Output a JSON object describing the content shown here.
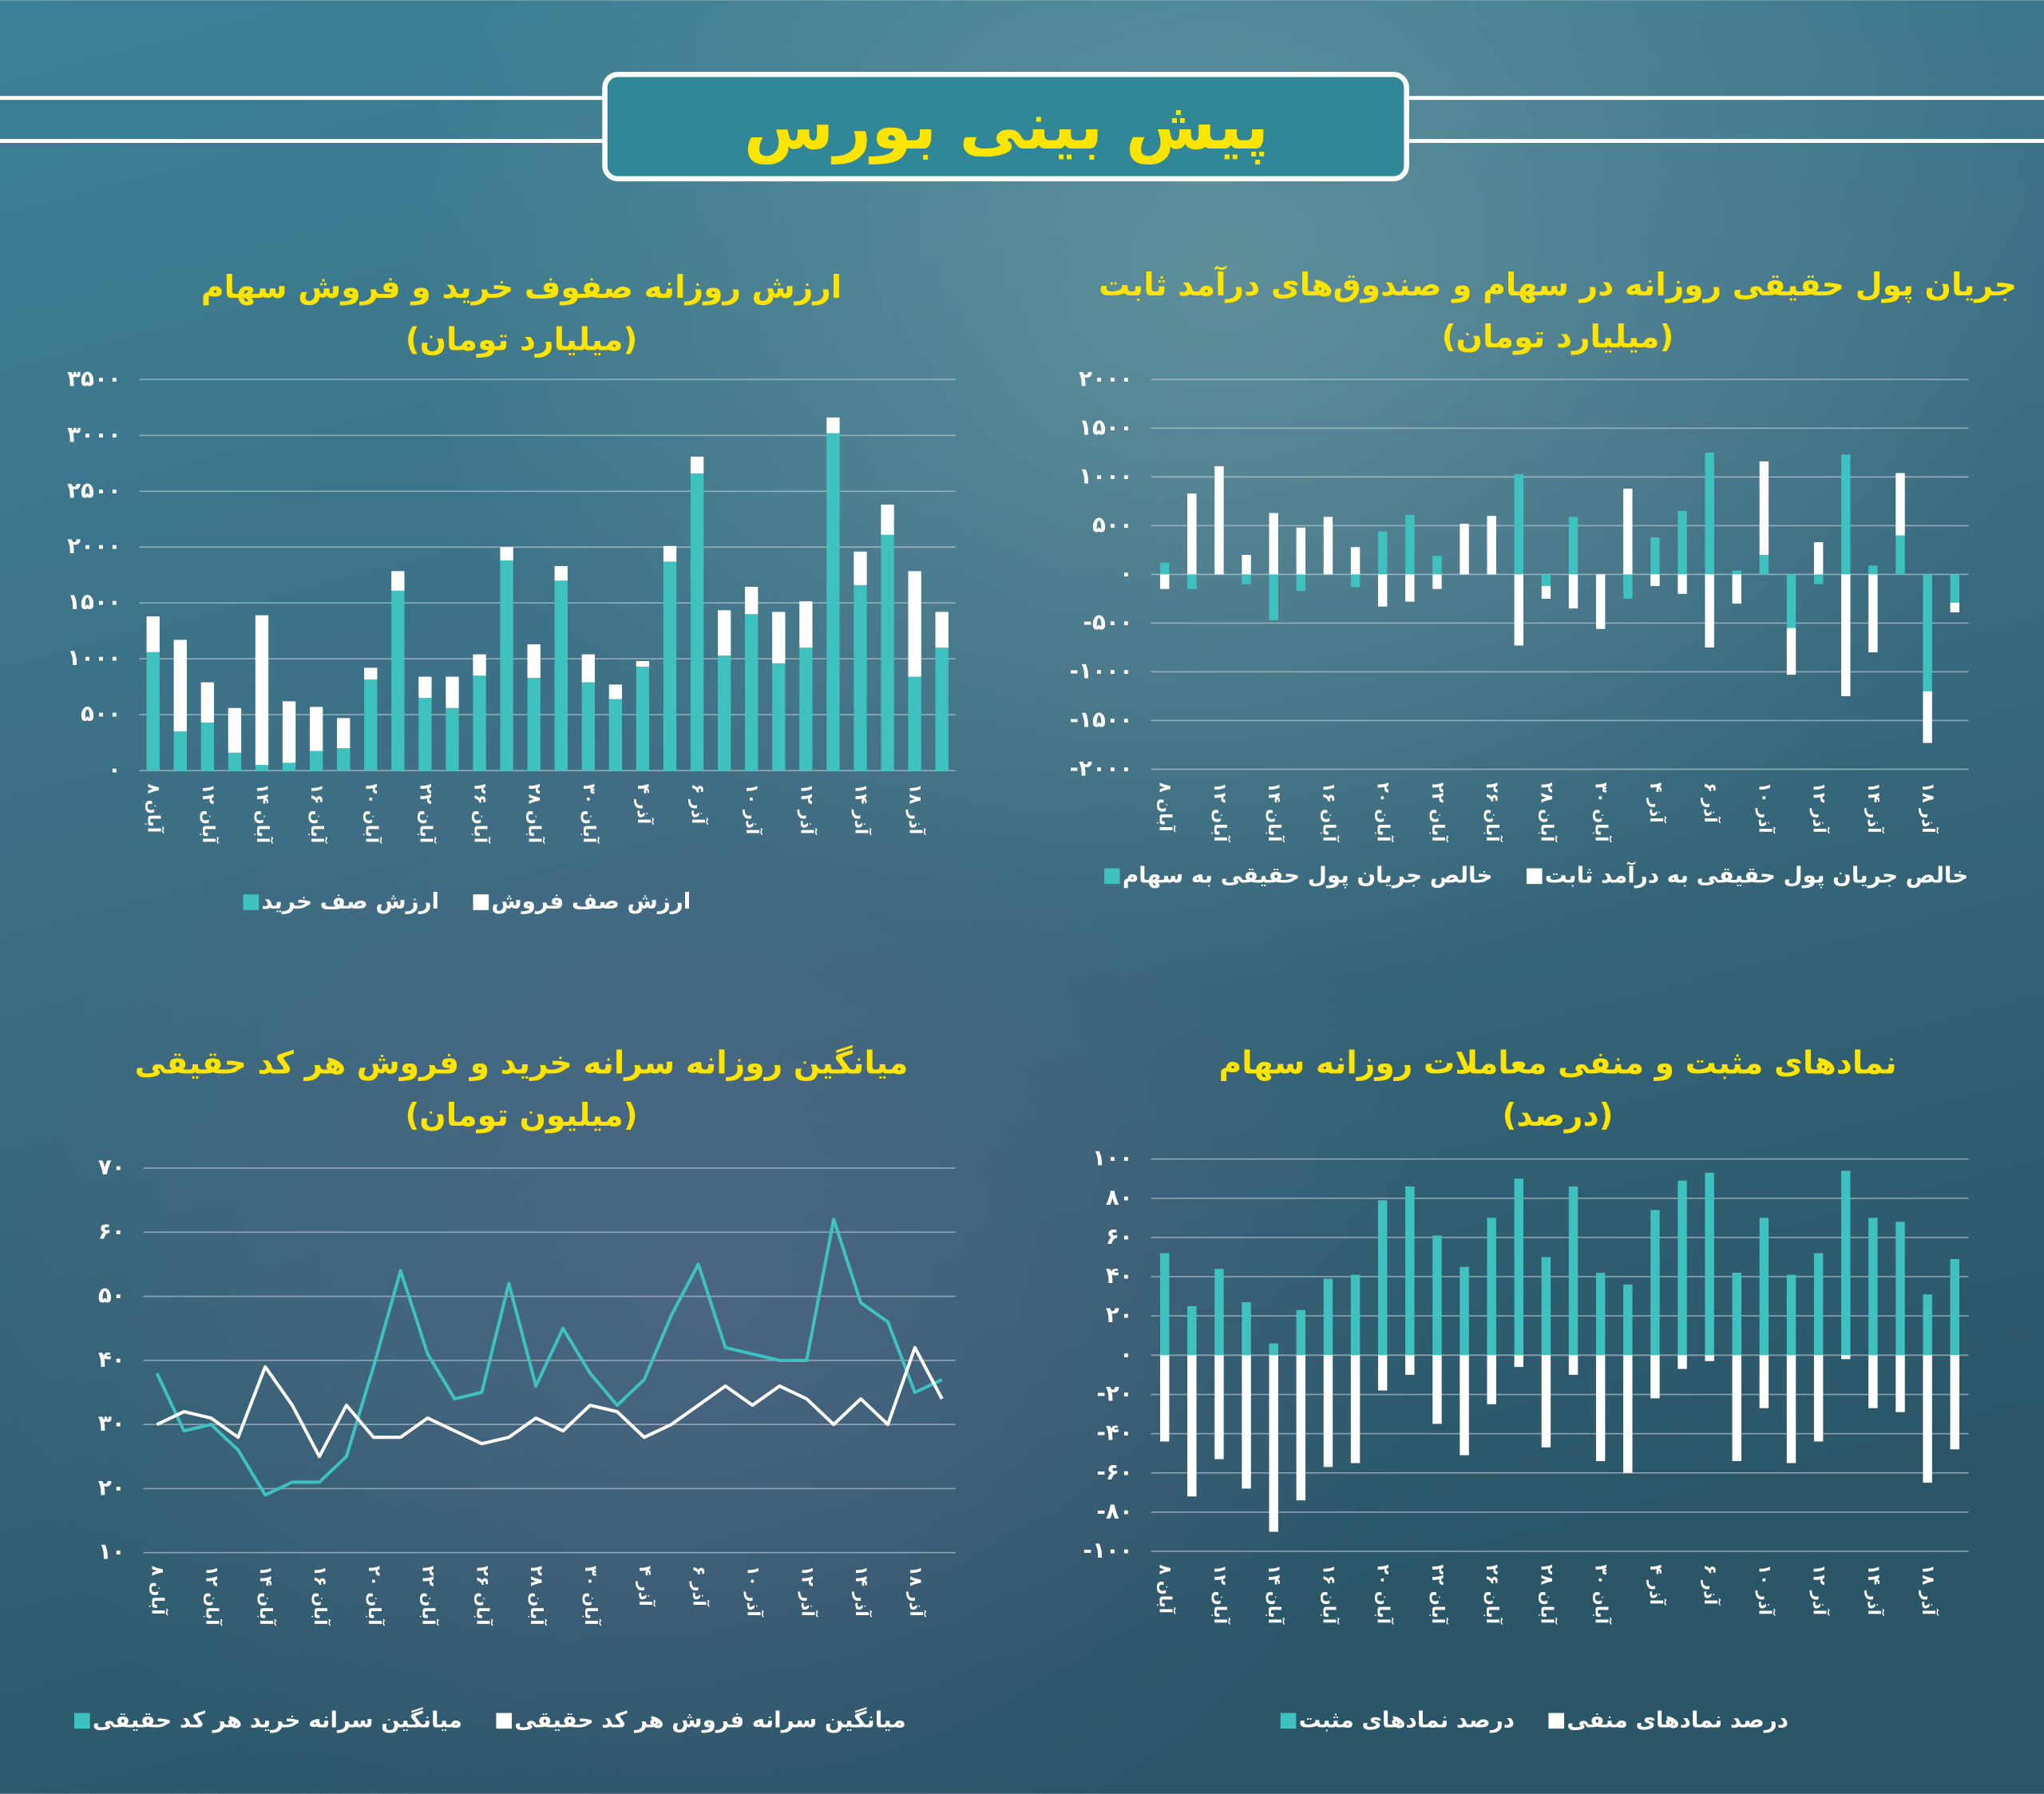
{
  "header": {
    "title": "پیش بینی بورس"
  },
  "chart_data": [
    {
      "type": "bar",
      "stacked": true,
      "title": "ارزش روزانه صفوف خرید و فروش سهام",
      "subtitle": "(میلیارد تومان)",
      "categories": [
        "۸ آبان",
        null,
        "۱۲ آبان",
        null,
        "۱۴ آبان",
        null,
        "۱۶ آبان",
        null,
        "۲۰ آبان",
        null,
        "۲۲ آبان",
        null,
        "۲۶ آبان",
        null,
        "۲۸ آبان",
        null,
        "۳۰ آبان",
        null,
        "۴ آذر",
        null,
        "۶ آذر",
        null,
        "۱۰ آذر",
        null,
        "۱۲ آذر",
        null,
        "۱۴ آذر",
        null,
        "۱۸ آذر",
        null
      ],
      "series": [
        {
          "name": "ارزش صف خرید",
          "color": "#3fc1c0",
          "values": [
            1060,
            350,
            430,
            160,
            50,
            70,
            175,
            200,
            815,
            1610,
            650,
            560,
            850,
            1880,
            830,
            1700,
            790,
            640,
            930,
            1870,
            2660,
            1030,
            1400,
            960,
            1100,
            3020,
            1660,
            2110,
            840,
            1100
          ]
        },
        {
          "name": "ارزش صف فروش",
          "color": "#ffffff",
          "values": [
            320,
            820,
            360,
            400,
            1340,
            550,
            395,
            270,
            105,
            175,
            190,
            280,
            190,
            120,
            300,
            130,
            250,
            130,
            50,
            140,
            150,
            405,
            245,
            460,
            415,
            140,
            300,
            270,
            945,
            320
          ]
        }
      ],
      "ylim": [
        0,
        3500
      ],
      "yticks": [
        {
          "value": 0,
          "label": "۰"
        },
        {
          "value": 500,
          "label": "۵۰۰"
        },
        {
          "value": 1000,
          "label": "۱۰۰۰"
        },
        {
          "value": 1500,
          "label": "۱۵۰۰"
        },
        {
          "value": 2000,
          "label": "۲۰۰۰"
        },
        {
          "value": 2500,
          "label": "۲۵۰۰"
        },
        {
          "value": 3000,
          "label": "۳۰۰۰"
        },
        {
          "value": 3500,
          "label": "۳۵۰۰"
        }
      ],
      "grid": true
    },
    {
      "type": "bar",
      "stacked": true,
      "title": "جریان پول حقیقی روزانه در سهام و صندوق‌های درآمد ثابت",
      "subtitle": "(میلیارد تومان)",
      "categories": [
        "۸ آبان",
        null,
        "۱۲ آبان",
        null,
        "۱۴ آبان",
        null,
        "۱۶ آبان",
        null,
        "۲۰ آبان",
        null,
        "۲۲ آبان",
        null,
        "۲۶ آبان",
        null,
        "۲۸ آبان",
        null,
        "۳۰ آبان",
        null,
        "۴ آذر",
        null,
        "۶ آذر",
        null,
        "۱۰ آذر",
        null,
        "۱۲ آذر",
        null,
        "۱۴ آذر",
        null,
        "۱۸ آذر",
        null
      ],
      "series": [
        {
          "name": "خالص جریان پول حقیقی به سهام",
          "color": "#3fc1c0",
          "values": [
            120,
            -150,
            0,
            -100,
            -470,
            -170,
            0,
            -130,
            440,
            610,
            190,
            0,
            0,
            1030,
            -120,
            590,
            0,
            -250,
            380,
            650,
            1250,
            40,
            200,
            -550,
            -100,
            1230,
            90,
            400,
            -1200,
            -290
          ]
        },
        {
          "name": "خالص جریان پول حقیقی به درآمد ثابت",
          "color": "#ffffff",
          "values": [
            -150,
            830,
            1110,
            200,
            630,
            480,
            590,
            280,
            -330,
            -280,
            -150,
            520,
            600,
            -730,
            -130,
            -350,
            -560,
            880,
            -120,
            -200,
            -750,
            -300,
            960,
            -480,
            330,
            -1250,
            -800,
            640,
            -530,
            -100
          ]
        }
      ],
      "ylim": [
        -2000,
        2000
      ],
      "yticks": [
        {
          "value": -2000,
          "label": "-۲۰۰۰"
        },
        {
          "value": -1500,
          "label": "-۱۵۰۰"
        },
        {
          "value": -1000,
          "label": "-۱۰۰۰"
        },
        {
          "value": -500,
          "label": "-۵۰۰"
        },
        {
          "value": 0,
          "label": "۰"
        },
        {
          "value": 500,
          "label": "۵۰۰"
        },
        {
          "value": 1000,
          "label": "۱۰۰۰"
        },
        {
          "value": 1500,
          "label": "۱۵۰۰"
        },
        {
          "value": 2000,
          "label": "۲۰۰۰"
        }
      ],
      "grid": true
    },
    {
      "type": "line",
      "title": "میانگین روزانه سرانه خرید و فروش هر کد حقیقی",
      "subtitle": "(میلیون تومان)",
      "categories": [
        "۸ آبان",
        null,
        "۱۲ آبان",
        null,
        "۱۴ آبان",
        null,
        "۱۶ آبان",
        null,
        "۲۰ آبان",
        null,
        "۲۲ آبان",
        null,
        "۲۶ آبان",
        null,
        "۲۸ آبان",
        null,
        "۳۰ آبان",
        null,
        "۴ آذر",
        null,
        "۶ آذر",
        null,
        "۱۰ آذر",
        null,
        "۱۲ آذر",
        null,
        "۱۴ آذر",
        null,
        "۱۸ آذر",
        null
      ],
      "series": [
        {
          "name": "میانگین سرانه خرید هر کد حقیقی",
          "color": "#3fc1c0",
          "values": [
            38,
            29,
            30,
            26,
            19,
            21,
            21,
            25,
            39,
            54,
            41,
            34,
            35,
            52,
            36,
            45,
            38,
            33,
            37,
            47,
            55,
            42,
            41,
            40,
            40,
            62,
            49,
            46,
            35,
            37
          ]
        },
        {
          "name": "میانگین سرانه فروش هر کد حقیقی",
          "color": "#ffffff",
          "values": [
            30,
            32,
            31,
            28,
            39,
            33,
            25,
            33,
            28,
            28,
            31,
            29,
            27,
            28,
            31,
            29,
            33,
            32,
            28,
            30,
            33,
            36,
            33,
            36,
            34,
            30,
            34,
            30,
            42,
            34
          ]
        }
      ],
      "ylim": [
        10,
        70
      ],
      "yticks": [
        {
          "value": 10,
          "label": "۱۰"
        },
        {
          "value": 20,
          "label": "۲۰"
        },
        {
          "value": 30,
          "label": "۳۰"
        },
        {
          "value": 40,
          "label": "۴۰"
        },
        {
          "value": 50,
          "label": "۵۰"
        },
        {
          "value": 60,
          "label": "۶۰"
        },
        {
          "value": 70,
          "label": "۷۰"
        }
      ],
      "grid": true
    },
    {
      "type": "bar",
      "stacked": true,
      "title": "نمادهای مثبت و منفی معاملات روزانه سهام",
      "subtitle": "(درصد)",
      "categories": [
        "۸ آبان",
        null,
        "۱۲ آبان",
        null,
        "۱۴ آبان",
        null,
        "۱۶ آبان",
        null,
        "۲۰ آبان",
        null,
        "۲۲ آبان",
        null,
        "۲۶ آبان",
        null,
        "۲۸ آبان",
        null,
        "۳۰ آبان",
        null,
        "۴ آذر",
        null,
        "۶ آذر",
        null,
        "۱۰ آذر",
        null,
        "۱۲ آذر",
        null,
        "۱۴ آذر",
        null,
        "۱۸ آذر",
        null
      ],
      "series": [
        {
          "name": "درصد نمادهای مثبت",
          "color": "#3fc1c0",
          "values": [
            52,
            25,
            44,
            27,
            6,
            23,
            39,
            41,
            79,
            86,
            61,
            45,
            70,
            90,
            50,
            86,
            42,
            36,
            74,
            89,
            93,
            42,
            70,
            41,
            52,
            94,
            70,
            68,
            31,
            49
          ]
        },
        {
          "name": "درصد نمادهای منفی",
          "color": "#ffffff",
          "values": [
            -44,
            -72,
            -53,
            -68,
            -90,
            -74,
            -57,
            -55,
            -18,
            -10,
            -35,
            -51,
            -25,
            -6,
            -47,
            -10,
            -54,
            -60,
            -22,
            -7,
            -3,
            -54,
            -27,
            -55,
            -44,
            -2,
            -27,
            -29,
            -65,
            -48
          ]
        }
      ],
      "ylim": [
        -100,
        100
      ],
      "yticks": [
        {
          "value": -100,
          "label": "-۱۰۰"
        },
        {
          "value": -80,
          "label": "-۸۰"
        },
        {
          "value": -60,
          "label": "-۶۰"
        },
        {
          "value": -40,
          "label": "-۴۰"
        },
        {
          "value": -20,
          "label": "-۲۰"
        },
        {
          "value": 0,
          "label": "۰"
        },
        {
          "value": 20,
          "label": "۲۰"
        },
        {
          "value": 40,
          "label": "۴۰"
        },
        {
          "value": 60,
          "label": "۶۰"
        },
        {
          "value": 80,
          "label": "۸۰"
        },
        {
          "value": 100,
          "label": "۱۰۰"
        }
      ],
      "grid": true
    }
  ]
}
